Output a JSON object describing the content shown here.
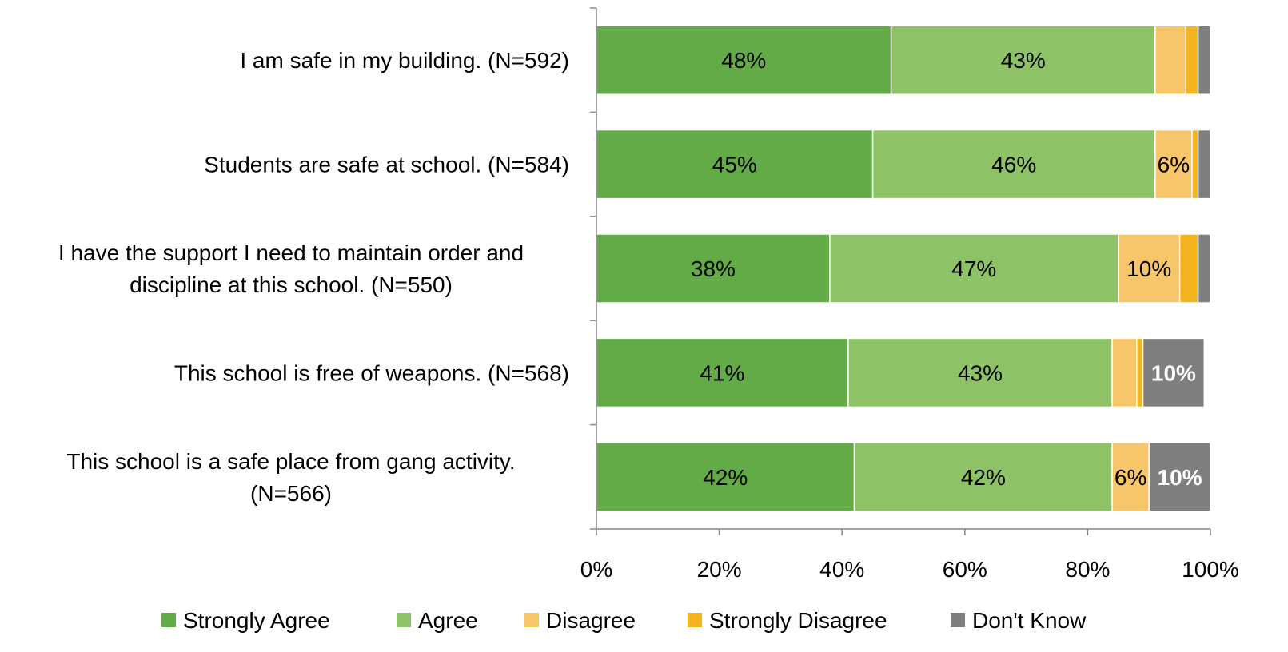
{
  "chart_data": {
    "type": "bar",
    "orientation": "horizontal",
    "stacked": "percent",
    "title": "",
    "xlabel": "",
    "ylabel": "",
    "xlim": [
      0,
      100
    ],
    "x_ticks": [
      "0%",
      "20%",
      "40%",
      "60%",
      "80%",
      "100%"
    ],
    "grid": false,
    "legend_position": "bottom",
    "categories": [
      [
        "I am safe in my building. (N=592)"
      ],
      [
        "Students are safe at school. (N=584)"
      ],
      [
        "I have the support I need to maintain order and",
        "discipline at this school. (N=550)"
      ],
      [
        "This school is free of weapons. (N=568)"
      ],
      [
        "This school is a safe place from gang activity.",
        "(N=566)"
      ]
    ],
    "series": [
      {
        "name": "Strongly Agree",
        "color": "#62AB46",
        "label_color": "#000000",
        "label_bold": false,
        "values": [
          48,
          45,
          38,
          41,
          42
        ],
        "labels": [
          "48%",
          "45%",
          "38%",
          "41%",
          "42%"
        ]
      },
      {
        "name": "Agree",
        "color": "#8DC366",
        "label_color": "#000000",
        "label_bold": false,
        "values": [
          43,
          46,
          47,
          43,
          42
        ],
        "labels": [
          "43%",
          "46%",
          "47%",
          "43%",
          "42%"
        ]
      },
      {
        "name": "Disagree",
        "color": "#F7C56A",
        "label_color": "#000000",
        "label_bold": false,
        "values": [
          5,
          6,
          10,
          4,
          6
        ],
        "labels": [
          "",
          "6%",
          "10%",
          "",
          "6%"
        ]
      },
      {
        "name": "Strongly Disagree",
        "color": "#F3B41D",
        "label_color": "#000000",
        "label_bold": false,
        "values": [
          2,
          1,
          3,
          1,
          0
        ],
        "labels": [
          "",
          "",
          "",
          "",
          ""
        ]
      },
      {
        "name": "Don't Know",
        "color": "#7F7F7F",
        "label_color": "#FFFFFF",
        "label_bold": true,
        "values": [
          2,
          2,
          2,
          10,
          10
        ],
        "labels": [
          "",
          "",
          "",
          "10%",
          "10%"
        ]
      }
    ]
  }
}
